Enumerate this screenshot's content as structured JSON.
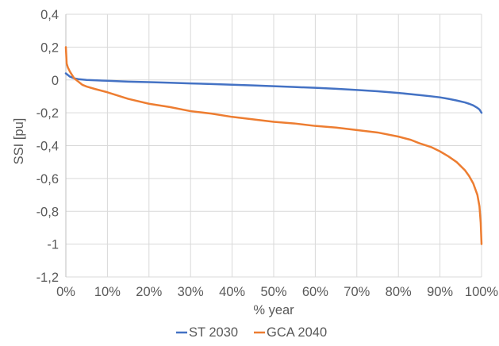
{
  "chart_data": {
    "type": "line",
    "title": "",
    "xlabel": "% year",
    "ylabel": "SSI [pu]",
    "xlim": [
      0,
      100
    ],
    "ylim": [
      -1.2,
      0.4
    ],
    "x_ticks": [
      "0%",
      "10%",
      "20%",
      "30%",
      "40%",
      "50%",
      "60%",
      "70%",
      "80%",
      "90%",
      "100%"
    ],
    "y_ticks": [
      "0,4",
      "0,2",
      "0",
      "-0,2",
      "-0,4",
      "-0,6",
      "-0,8",
      "-1",
      "-1,2"
    ],
    "grid": true,
    "legend_position": "bottom",
    "series": [
      {
        "name": "ST 2030",
        "color": "#4472c4",
        "x": [
          0,
          1,
          2,
          3,
          5,
          8,
          10,
          15,
          20,
          25,
          30,
          35,
          40,
          45,
          50,
          55,
          60,
          65,
          70,
          75,
          80,
          85,
          88,
          90,
          92,
          94,
          96,
          97,
          98,
          99,
          99.5,
          100
        ],
        "y": [
          0.04,
          0.02,
          0.01,
          0.005,
          0.0,
          -0.003,
          -0.005,
          -0.01,
          -0.013,
          -0.017,
          -0.021,
          -0.025,
          -0.029,
          -0.033,
          -0.038,
          -0.043,
          -0.048,
          -0.054,
          -0.061,
          -0.069,
          -0.079,
          -0.092,
          -0.1,
          -0.106,
          -0.115,
          -0.125,
          -0.137,
          -0.145,
          -0.155,
          -0.17,
          -0.18,
          -0.2
        ]
      },
      {
        "name": "GCA 2040",
        "color": "#ed7d31",
        "x": [
          0,
          0.2,
          0.5,
          1,
          2,
          3,
          4,
          5,
          7,
          10,
          15,
          20,
          25,
          30,
          35,
          40,
          45,
          50,
          55,
          60,
          65,
          70,
          75,
          80,
          83,
          85,
          88,
          90,
          92,
          94,
          96,
          97,
          98,
          99,
          99.5,
          99.8,
          100
        ],
        "y": [
          0.2,
          0.1,
          0.075,
          0.05,
          0.01,
          -0.01,
          -0.03,
          -0.04,
          -0.055,
          -0.075,
          -0.115,
          -0.145,
          -0.165,
          -0.19,
          -0.205,
          -0.225,
          -0.24,
          -0.255,
          -0.265,
          -0.28,
          -0.29,
          -0.305,
          -0.32,
          -0.345,
          -0.365,
          -0.385,
          -0.41,
          -0.435,
          -0.465,
          -0.5,
          -0.55,
          -0.585,
          -0.63,
          -0.7,
          -0.77,
          -0.87,
          -1.0
        ]
      }
    ]
  }
}
